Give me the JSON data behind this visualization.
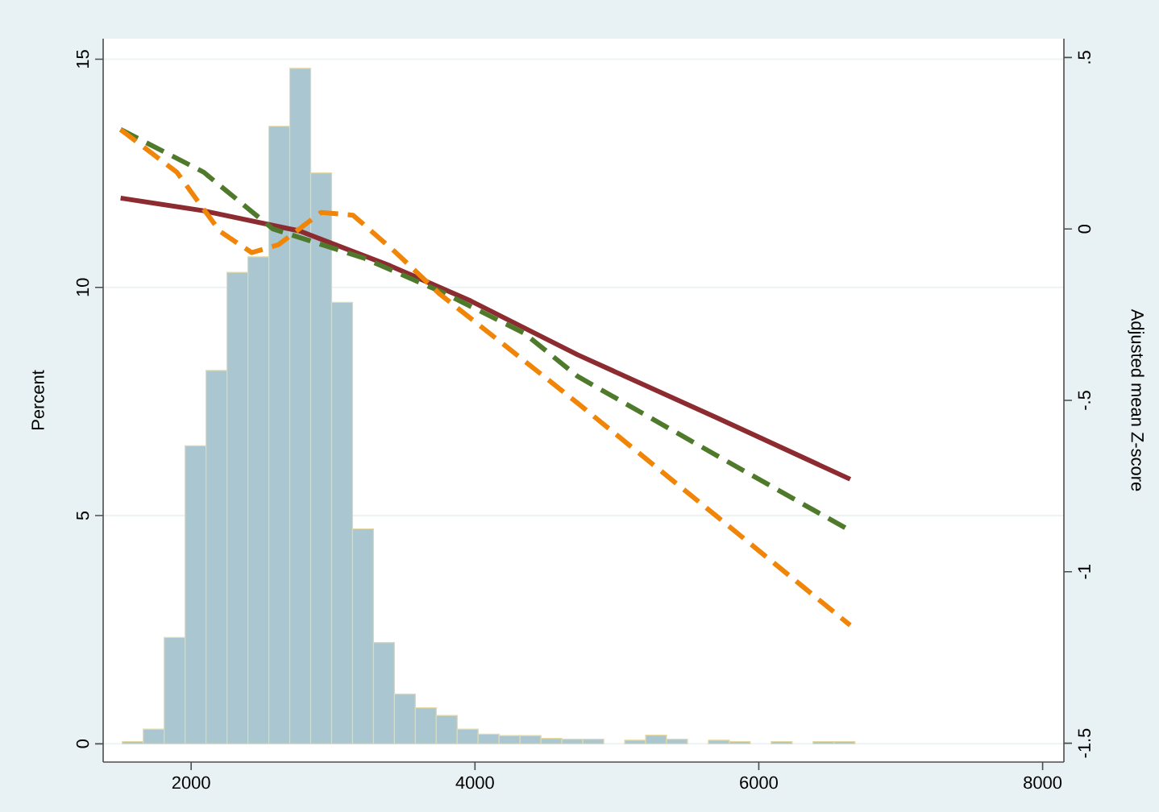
{
  "chart_data": {
    "type": "histogram",
    "bins": [
      1515,
      1662.5,
      1810,
      1957.5,
      2105,
      2252.5,
      2400,
      2547.5,
      2695,
      2842.5,
      2990,
      3137.5,
      3285,
      3432.5,
      3580,
      3727.5,
      3875,
      4022.5,
      4170,
      4317.5,
      4465,
      4612.5,
      4760,
      4907.5,
      5055,
      5202.5,
      5350,
      5497.5,
      5645,
      5792.5,
      5940,
      6087.5,
      6235,
      6382.5,
      6530,
      6677.5
    ],
    "values": [
      0.05,
      0.32,
      2.33,
      6.53,
      8.18,
      10.33,
      10.67,
      13.53,
      14.8,
      12.51,
      9.67,
      4.71,
      2.22,
      1.09,
      0.79,
      0.62,
      0.32,
      0.21,
      0.18,
      0.18,
      0.12,
      0.1,
      0.1,
      null,
      0.08,
      0.19,
      0.1,
      null,
      0.08,
      0.05,
      null,
      0.05,
      null,
      0.05,
      0.05
    ],
    "color": "#a9c6d1",
    "series": [
      {
        "type": "line",
        "axis": "y2",
        "color": "#8c2b30",
        "line_style": "solid",
        "x": [
          1503,
          2087,
          2765,
          3405,
          3970,
          4723,
          5700,
          6644
        ],
        "values": [
          0.09,
          0.053,
          -0.006,
          -0.108,
          -0.21,
          -0.367,
          -0.55,
          -0.73
        ]
      },
      {
        "type": "line",
        "axis": "y2",
        "color": "#4f7a2b",
        "line_style": "dashed",
        "x": [
          1503,
          2087,
          2576,
          3217,
          3782,
          4347,
          4723,
          5700,
          6644
        ],
        "values": [
          0.29,
          0.166,
          0.0,
          -0.085,
          -0.187,
          -0.304,
          -0.43,
          -0.66,
          -0.88
        ]
      },
      {
        "type": "line",
        "axis": "y2",
        "color": "#f08508",
        "line_style": "dashed",
        "x": [
          1503,
          1898,
          2200,
          2426,
          2614,
          2915,
          3141,
          3443,
          3744,
          4196,
          4723,
          5700,
          6644
        ],
        "values": [
          0.29,
          0.166,
          -0.006,
          -0.069,
          -0.046,
          0.048,
          0.04,
          -0.069,
          -0.187,
          -0.335,
          -0.508,
          -0.837,
          -1.156
        ]
      }
    ],
    "ylabel": "Percent",
    "y2label": "Adjusted mean Z-score",
    "xlim": [
      1380,
      8150
    ],
    "xticks": [
      2000,
      4000,
      6000,
      8000
    ],
    "ylim": [
      -0.4,
      15.45
    ],
    "yticks": [
      0,
      5,
      10,
      15
    ],
    "y2lim": [
      -1.555,
      0.555
    ],
    "y2ticks": [
      {
        "value": 0.5,
        "label": ".5"
      },
      0,
      {
        "value": -0.5,
        "label": "-.5"
      },
      -1,
      {
        "value": -1.5,
        "label": "-1.5"
      }
    ],
    "grid": "y"
  }
}
